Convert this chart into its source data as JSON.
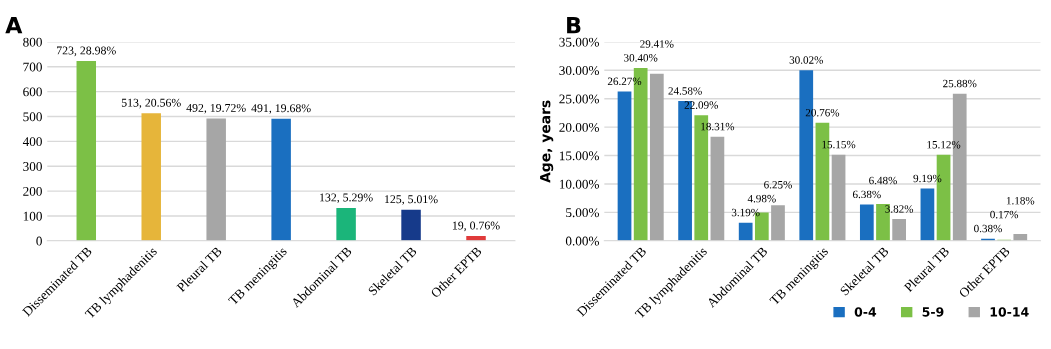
{
  "chart_data": [
    {
      "type": "bar",
      "title": "A",
      "categories": [
        "Disseminated TB",
        "TB lymphadenitis",
        "Pleural TB",
        "TB meningitis",
        "Abdominal TB",
        "Skeletal TB",
        "Other EPTB"
      ],
      "values": [
        723,
        513,
        492,
        491,
        132,
        125,
        19
      ],
      "colors": [
        "#7cc046",
        "#e6b53a",
        "#a6a6a6",
        "#1a6fc0",
        "#1bb57a",
        "#163a8a",
        "#e03a3a"
      ],
      "value_labels": [
        "723, 28.98%",
        "513, 20.56%",
        "492, 19.72%",
        "491, 19.68%",
        "132, 5.29%",
        "125, 5.01%",
        "19, 0.76%"
      ],
      "ylim": [
        0,
        800
      ],
      "yticks": [
        0,
        100,
        200,
        300,
        400,
        500,
        600,
        700,
        800
      ],
      "grid": "y",
      "legend": false
    },
    {
      "type": "bar",
      "title": "B",
      "ylabel": "Age, years",
      "categories": [
        "Disseminated TB",
        "TB lymphadenitis",
        "Abdominal TB",
        "TB meningitis",
        "Skeletal TB",
        "Pleural TB",
        "Other EPTB"
      ],
      "series": [
        {
          "name": "0-4",
          "color": "#1a6fc0",
          "values": [
            26.27,
            24.58,
            3.19,
            30.02,
            6.38,
            9.19,
            0.38
          ],
          "value_labels": [
            "26.27%",
            "24.58%",
            "3.19%",
            "30.02%",
            "6.38%",
            "9.19%",
            "0.38%"
          ]
        },
        {
          "name": "5-9",
          "color": "#7cc046",
          "values": [
            30.4,
            22.09,
            4.98,
            20.76,
            6.48,
            15.12,
            0.17
          ],
          "value_labels": [
            "30.40%",
            "22.09%",
            "4.98%",
            "20.76%",
            "6.48%",
            "15.12%",
            "0.17%"
          ]
        },
        {
          "name": "10-14",
          "color": "#a6a6a6",
          "values": [
            29.41,
            18.31,
            6.25,
            15.15,
            3.82,
            25.88,
            1.18
          ],
          "value_labels": [
            "29.41%",
            "18.31%",
            "6.25%",
            "15.15%",
            "3.82%",
            "25.88%",
            "1.18%"
          ]
        }
      ],
      "ylim": [
        0,
        35
      ],
      "yticks": [
        {
          "value": 0,
          "label": "0.00%"
        },
        {
          "value": 5,
          "label": "5.00%"
        },
        {
          "value": 10,
          "label": "10.00%"
        },
        {
          "value": 15,
          "label": "15.00%"
        },
        {
          "value": 20,
          "label": "20.00%"
        },
        {
          "value": 25,
          "label": "25.00%"
        },
        {
          "value": 30,
          "label": "30.00%"
        },
        {
          "value": 35,
          "label": "35.00%"
        }
      ],
      "grid": "y",
      "legend": "bottom right"
    }
  ]
}
